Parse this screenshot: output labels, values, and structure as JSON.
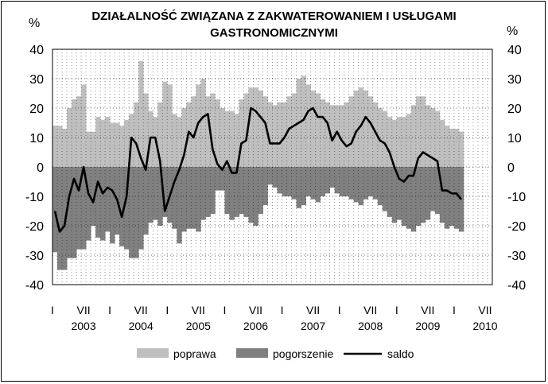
{
  "chart_data": {
    "type": "area",
    "title_line1": "DZIAŁALNOŚĆ ZWIĄZANA Z ZAKWATEROWANIEM I USŁUGAMI",
    "title_line2": "GASTRONOMICZNYMI",
    "ylabel_left": "%",
    "ylabel_right": "%",
    "ylim": [
      -40,
      40
    ],
    "yticks": [
      40,
      30,
      20,
      10,
      0,
      -10,
      -20,
      -30,
      -40
    ],
    "x_tick_labels": [
      "I",
      "VII",
      "I",
      "VII",
      "I",
      "VII",
      "I",
      "VII",
      "I",
      "VII",
      "I",
      "VII",
      "I",
      "VII",
      "I",
      "VII"
    ],
    "x_year_labels": [
      "2003",
      "2004",
      "2005",
      "2006",
      "2007",
      "2008",
      "2009",
      "2010"
    ],
    "grid": true,
    "legend_position": "bottom",
    "series": [
      {
        "name": "poprawa",
        "color": "#bfbfbf",
        "values": [
          14,
          14,
          13,
          20,
          23,
          24,
          28,
          12,
          12,
          17,
          16,
          17,
          15,
          15,
          14,
          16,
          18,
          22,
          36,
          25,
          19,
          17,
          22,
          29,
          28,
          18,
          17,
          20,
          22,
          24,
          28,
          30,
          24,
          25,
          23,
          20,
          19,
          19,
          18,
          23,
          25,
          27,
          27,
          26,
          24,
          22,
          21,
          22,
          22,
          24,
          25,
          30,
          31,
          28,
          26,
          25,
          23,
          22,
          21,
          21,
          21,
          22,
          24,
          26,
          27,
          26,
          24,
          22,
          20,
          19,
          17,
          16,
          17,
          17,
          18,
          21,
          24,
          24,
          21,
          20,
          19,
          16,
          14,
          13,
          13,
          12
        ]
      },
      {
        "name": "pogorszenie",
        "color": "#808080",
        "values": [
          -29,
          -35,
          -35,
          -31,
          -31,
          -28,
          -28,
          -25,
          -20,
          -24,
          -25,
          -22,
          -26,
          -23,
          -27,
          -28,
          -31,
          -31,
          -28,
          -23,
          -19,
          -18,
          -20,
          -17,
          -19,
          -21,
          -26,
          -22,
          -21,
          -21,
          -22,
          -18,
          -17,
          -16,
          -8,
          -8,
          -16,
          -18,
          -17,
          -16,
          -17,
          -19,
          -20,
          -16,
          -13,
          -6,
          -7,
          -9,
          -10,
          -10,
          -11,
          -14,
          -13,
          -10,
          -11,
          -12,
          -10,
          -9,
          -7,
          -9,
          -10,
          -10,
          -11,
          -12,
          -13,
          -11,
          -10,
          -11,
          -13,
          -15,
          -17,
          -19,
          -18,
          -20,
          -21,
          -22,
          -20,
          -19,
          -18,
          -15,
          -16,
          -19,
          -21,
          -20,
          -21,
          -22
        ]
      },
      {
        "name": "saldo",
        "color": "#000000",
        "values": [
          -15,
          -22,
          -20,
          -10,
          -4,
          -8,
          0,
          -9,
          -12,
          -5,
          -9,
          -7,
          -8,
          -11,
          -17,
          -10,
          10,
          8,
          3,
          -1,
          10,
          10,
          2,
          -15,
          -10,
          -5,
          -1,
          4,
          12,
          10,
          15,
          17,
          18,
          6,
          1,
          -1,
          2,
          -2,
          -2,
          8,
          9,
          20,
          19,
          17,
          15,
          8,
          8,
          8,
          10,
          13,
          14,
          15,
          16,
          19,
          20,
          17,
          17,
          15,
          9,
          12,
          9,
          7,
          8,
          12,
          14,
          17,
          15,
          12,
          9,
          8,
          5,
          0,
          -4,
          -5,
          -3,
          -3,
          3,
          5,
          4,
          3,
          2,
          -8,
          -8,
          -9,
          -9,
          -11
        ]
      }
    ]
  }
}
